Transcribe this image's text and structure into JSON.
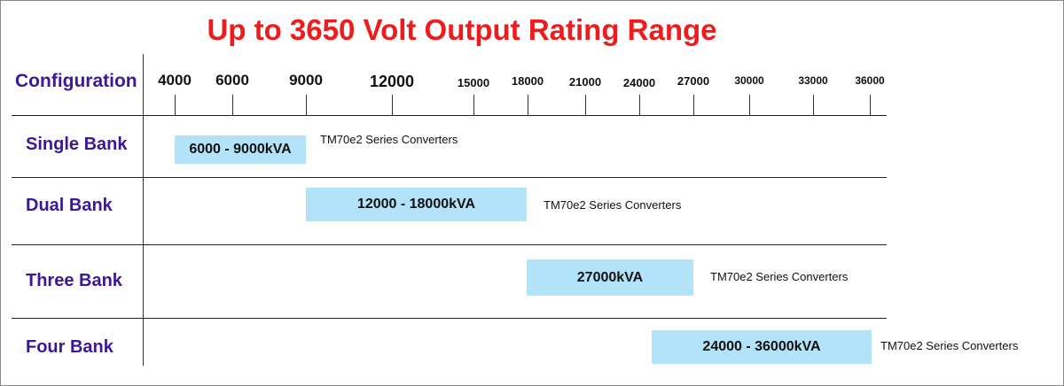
{
  "chart_data": {
    "type": "range-bar",
    "title": "Up to 3650 Volt Output Rating Range",
    "ylabel": "Configuration",
    "ticks": [
      "4000",
      "6000",
      "9000",
      "12000",
      "15000",
      "18000",
      "21000",
      "24000",
      "27000",
      "30000",
      "33000",
      "36000"
    ],
    "rows": [
      {
        "name": "Single Bank",
        "label": "6000 - 9000kVA",
        "range": [
          6000,
          9000
        ],
        "note": "TM70e2  Series Converters"
      },
      {
        "name": "Dual Bank",
        "label": "12000 - 18000kVA",
        "range": [
          12000,
          18000
        ],
        "note": "TM70e2  Series Converters"
      },
      {
        "name": "Three Bank",
        "label": "27000kVA",
        "range": [
          27000,
          27000
        ],
        "note": "TM70e2  Series Converters"
      },
      {
        "name": "Four Bank",
        "label": "24000 - 36000kVA",
        "range": [
          24000,
          36000
        ],
        "note": "TM70e2 Series Converters"
      }
    ]
  }
}
